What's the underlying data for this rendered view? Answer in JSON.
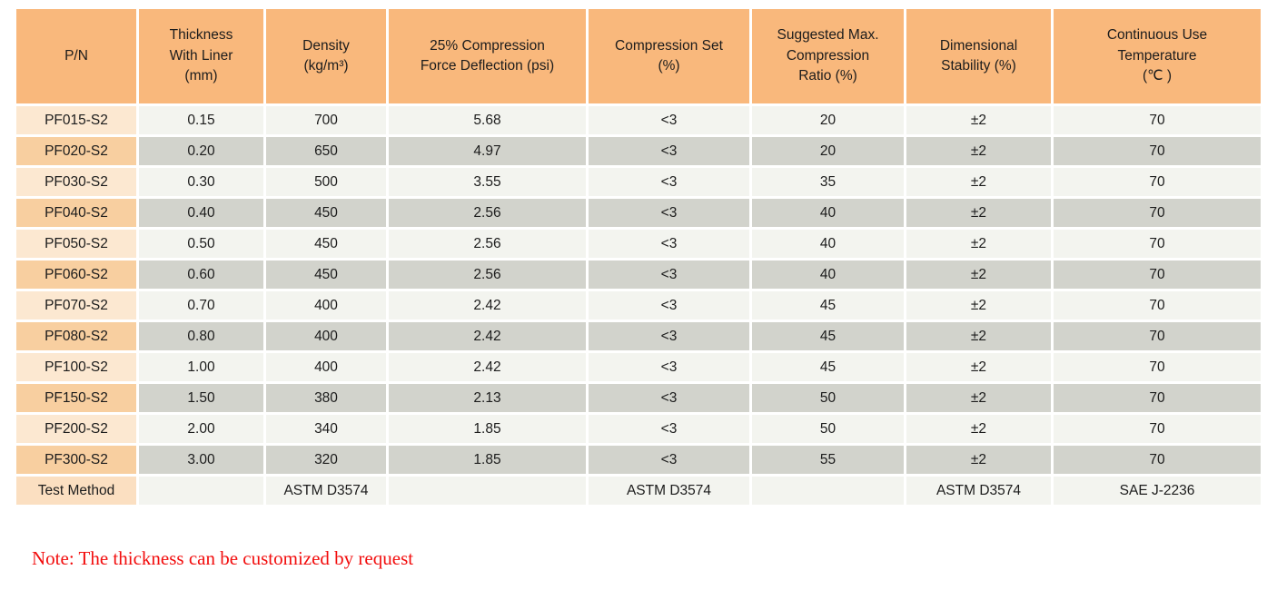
{
  "table": {
    "headers": [
      "P/N",
      "Thickness\nWith Liner\n(mm)",
      "Density\n(kg/m³)",
      "25% Compression\nForce Deflection (psi)",
      "Compression Set\n(%)",
      "Suggested Max.\nCompression\nRatio (%)",
      "Dimensional\nStability (%)",
      "Continuous Use\nTemperature\n(℃ )"
    ],
    "rows": [
      [
        "PF015-S2",
        "0.15",
        "700",
        "5.68",
        "<3",
        "20",
        "±2",
        "70"
      ],
      [
        "PF020-S2",
        "0.20",
        "650",
        "4.97",
        "<3",
        "20",
        "±2",
        "70"
      ],
      [
        "PF030-S2",
        "0.30",
        "500",
        "3.55",
        "<3",
        "35",
        "±2",
        "70"
      ],
      [
        "PF040-S2",
        "0.40",
        "450",
        "2.56",
        "<3",
        "40",
        "±2",
        "70"
      ],
      [
        "PF050-S2",
        "0.50",
        "450",
        "2.56",
        "<3",
        "40",
        "±2",
        "70"
      ],
      [
        "PF060-S2",
        "0.60",
        "450",
        "2.56",
        "<3",
        "40",
        "±2",
        "70"
      ],
      [
        "PF070-S2",
        "0.70",
        "400",
        "2.42",
        "<3",
        "45",
        "±2",
        "70"
      ],
      [
        "PF080-S2",
        "0.80",
        "400",
        "2.42",
        "<3",
        "45",
        "±2",
        "70"
      ],
      [
        "PF100-S2",
        "1.00",
        "400",
        "2.42",
        "<3",
        "45",
        "±2",
        "70"
      ],
      [
        "PF150-S2",
        "1.50",
        "380",
        "2.13",
        "<3",
        "50",
        "±2",
        "70"
      ],
      [
        "PF200-S2",
        "2.00",
        "340",
        "1.85",
        "<3",
        "50",
        "±2",
        "70"
      ],
      [
        "PF300-S2",
        "3.00",
        "320",
        "1.85",
        "<3",
        "55",
        "±2",
        "70"
      ]
    ],
    "footer_row": [
      "Test Method",
      "",
      "ASTM D3574",
      "",
      "ASTM D3574",
      "",
      "ASTM D3574",
      "SAE J-2236"
    ],
    "colors": {
      "header_bg": "#f9b87c",
      "pn_odd_bg": "#fce8d1",
      "pn_even_bg": "#f8cfa0",
      "row_odd_bg": "#f3f4ef",
      "row_even_bg": "#d2d3cc",
      "footer_pn_bg": "#fbdfc1",
      "text": "#1c1c1c"
    }
  },
  "note": {
    "text": "Note: The thickness can be customized by request",
    "color": "#f20d0d"
  }
}
